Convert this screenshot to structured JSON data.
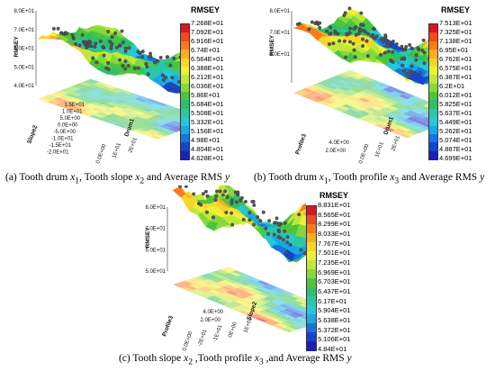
{
  "panels": [
    {
      "id": "a",
      "caption_parts": [
        "(a) Tooth drum ",
        "x",
        "1",
        ", Tooth slope ",
        "x",
        "2",
        " and Average RMS ",
        "y"
      ],
      "legend_title": "RMSEY",
      "legend_values": [
        "7.268E+01",
        "7.092E+01",
        "6.916E+01",
        "6.74E+01",
        "6.564E+01",
        "6.388E+01",
        "6.212E+01",
        "6.036E+01",
        "5.86E+01",
        "5.684E+01",
        "5.508E+01",
        "5.332E+01",
        "5.156E+01",
        "4.98E+01",
        "4.804E+01",
        "4.628E+01"
      ],
      "z_ticks": [
        "8.0E+01",
        "7.0E+01",
        "6.0E+01",
        "5.0E+01",
        "4.0E+01"
      ],
      "z_axis_label": "RMSEY",
      "axis1_ticks": [
        "1.5E+01",
        "1.0E+01",
        "5.0E+00",
        "0.0E+00",
        "-5.0E+00",
        "-1.0E+01",
        "-1.5E+01",
        "-2.0E+01"
      ],
      "axis1_label": "Slope2",
      "axis2_ticks": [
        "0.0E+00",
        "1E+01",
        "2E+01"
      ],
      "axis2_label": "Drum1"
    },
    {
      "id": "b",
      "caption_parts": [
        "(b) Tooth drum ",
        "x",
        "1",
        ", Tooth profile ",
        "x",
        "3",
        " and Average RMS ",
        "y"
      ],
      "legend_title": "RMSEY",
      "legend_values": [
        "7.513E+01",
        "7.325E+01",
        "7.138E+01",
        "6.95E+01",
        "6.762E+01",
        "6.575E+01",
        "6.387E+01",
        "6.2E+01",
        "6.012E+01",
        "5.825E+01",
        "5.637E+01",
        "5.449E+01",
        "5.262E+01",
        "5.074E+01",
        "4.887E+01",
        "4.699E+01"
      ],
      "z_ticks": [
        "8.0E+01",
        "7.0E+01",
        "6.0E+01"
      ],
      "z_axis_label": "RMSEY",
      "axis1_ticks": [
        "4.0E+00",
        "2.0E+00"
      ],
      "axis1_label": "Profile3",
      "axis2_ticks": [
        "0.0E+00",
        "1E+01",
        "2E+01"
      ],
      "axis2_label": "Drum1"
    },
    {
      "id": "c",
      "caption_parts": [
        "(c) Tooth slope ",
        "x",
        "2",
        " ,Tooth profile ",
        "x",
        "3",
        " ,and Average RMS ",
        "y"
      ],
      "legend_title": "RMSEY",
      "legend_values": [
        "8.831E+01",
        "8.565E+01",
        "8.299E+01",
        "8.033E+01",
        "7.767E+01",
        "7.501E+01",
        "7.235E+01",
        "6.969E+01",
        "6.703E+01",
        "6.437E+01",
        "6.17E+01",
        "5.904E+01",
        "5.638E+01",
        "5.372E+01",
        "5.106E+01",
        "4.84E+01"
      ],
      "z_ticks": [
        "8.0E+01",
        "7.0E+01",
        "6.0E+01",
        "5.0E+01"
      ],
      "z_axis_label": "RMSEY",
      "axis1_ticks": [
        "4.0E+00",
        "2.0E+00"
      ],
      "axis1_label": "Profile3",
      "axis2_ticks": [
        "0.0E+00",
        "-2E+01",
        "-1E+01",
        "0E+00",
        "1E+01"
      ],
      "axis2_label": "Slope2"
    }
  ],
  "colormap": [
    "#d7171f",
    "#f04a1d",
    "#fa7a1c",
    "#fbae1f",
    "#f9d52a",
    "#eef036",
    "#bfe83a",
    "#86d93b",
    "#4cc53e",
    "#2fbf6a",
    "#2bc6a8",
    "#24c9d6",
    "#1aa7e6",
    "#1474e0",
    "#1544cf",
    "#1a1fb8"
  ]
}
